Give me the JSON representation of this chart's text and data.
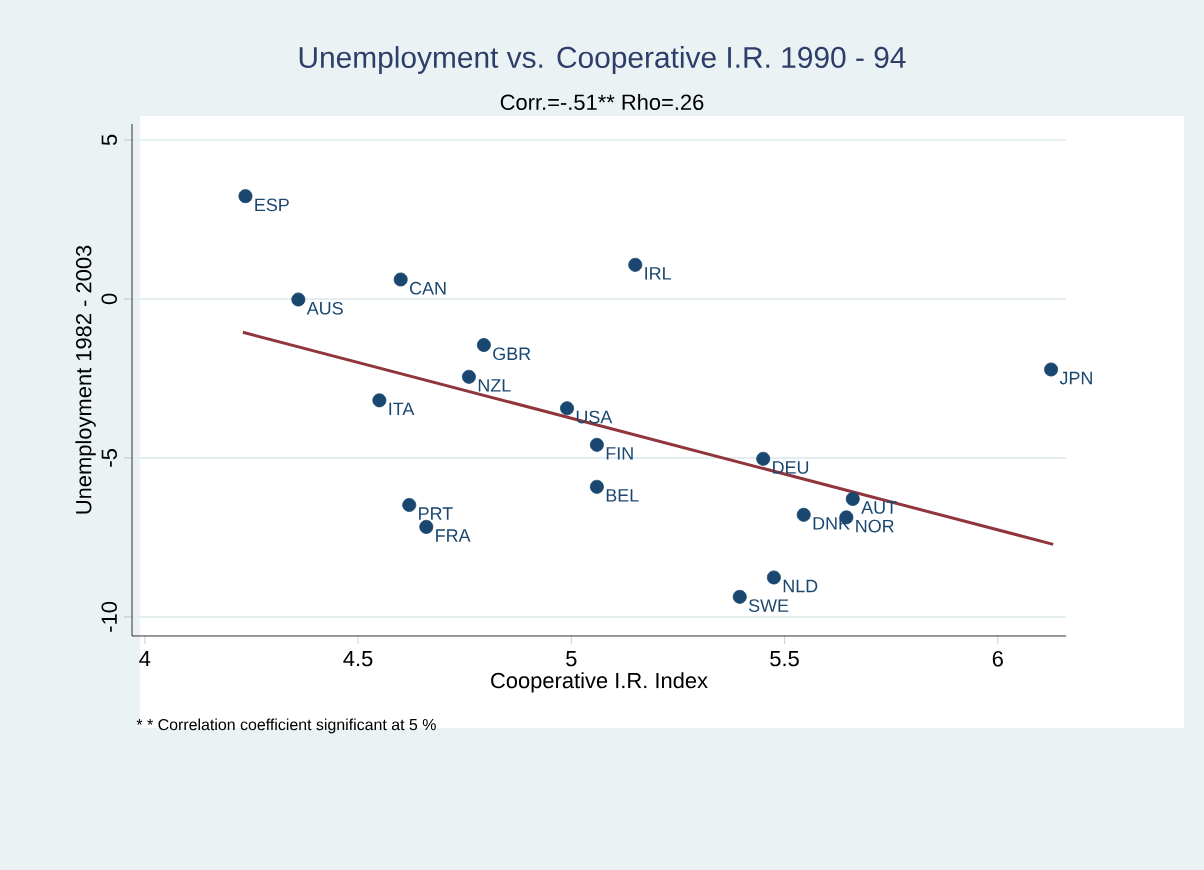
{
  "chart_data": {
    "type": "scatter",
    "title": "Unemployment vs. Cooperative I.R. 1990 - 94",
    "subtitle": "Corr.=-.51**  Rho=.26",
    "xlabel": "Cooperative I.R. Index",
    "ylabel": "Unemployment 1982 - 2003",
    "xlim": [
      3.97,
      6.16
    ],
    "ylim": [
      -10.6,
      5.5
    ],
    "xticks": [
      4,
      4.5,
      5,
      5.5,
      6
    ],
    "yticks": [
      -10,
      -5,
      0,
      5
    ],
    "grid": "y",
    "series": [
      {
        "color": "#1a476f",
        "marker": "circle",
        "x": [
          4.236,
          4.6,
          4.36,
          4.795,
          4.76,
          4.55,
          4.99,
          5.06,
          5.06,
          4.62,
          4.66,
          5.15,
          6.125,
          5.45,
          5.66,
          5.545,
          5.645,
          5.475,
          5.395
        ],
        "values": [
          3.23,
          0.61,
          -0.02,
          -1.45,
          -2.45,
          -3.19,
          -3.44,
          -4.59,
          -5.91,
          -6.48,
          -7.17,
          1.07,
          -2.22,
          -5.03,
          -6.29,
          -6.79,
          -6.87,
          -8.76,
          -9.37
        ]
      },
      {
        "type": "line",
        "color": "#90353b",
        "x": [
          4.23,
          6.13
        ],
        "values": [
          -1.05,
          -7.72
        ]
      }
    ],
    "annotations": [
      {
        "text": "ESP",
        "x": 4.236,
        "y": 3.23
      },
      {
        "text": "CAN",
        "x": 4.6,
        "y": 0.61
      },
      {
        "text": "AUS",
        "x": 4.36,
        "y": -0.02
      },
      {
        "text": "GBR",
        "x": 4.795,
        "y": -1.45
      },
      {
        "text": "NZL",
        "x": 4.76,
        "y": -2.45
      },
      {
        "text": "ITA",
        "x": 4.55,
        "y": -3.19
      },
      {
        "text": "USA",
        "x": 4.99,
        "y": -3.44
      },
      {
        "text": "FIN",
        "x": 5.06,
        "y": -4.59
      },
      {
        "text": "BEL",
        "x": 5.06,
        "y": -5.91
      },
      {
        "text": "PRT",
        "x": 4.62,
        "y": -6.48
      },
      {
        "text": "FRA",
        "x": 4.66,
        "y": -7.17
      },
      {
        "text": "IRL",
        "x": 5.15,
        "y": 1.07
      },
      {
        "text": "JPN",
        "x": 6.125,
        "y": -2.22
      },
      {
        "text": "DEU",
        "x": 5.45,
        "y": -5.03
      },
      {
        "text": "AUT",
        "x": 5.66,
        "y": -6.29
      },
      {
        "text": "DNK",
        "x": 5.545,
        "y": -6.79
      },
      {
        "text": "NOR",
        "x": 5.645,
        "y": -6.87
      },
      {
        "text": "NLD",
        "x": 5.475,
        "y": -8.76
      },
      {
        "text": "SWE",
        "x": 5.395,
        "y": -9.37
      },
      "* * Correlation coefficient significant at 5 %"
    ]
  }
}
